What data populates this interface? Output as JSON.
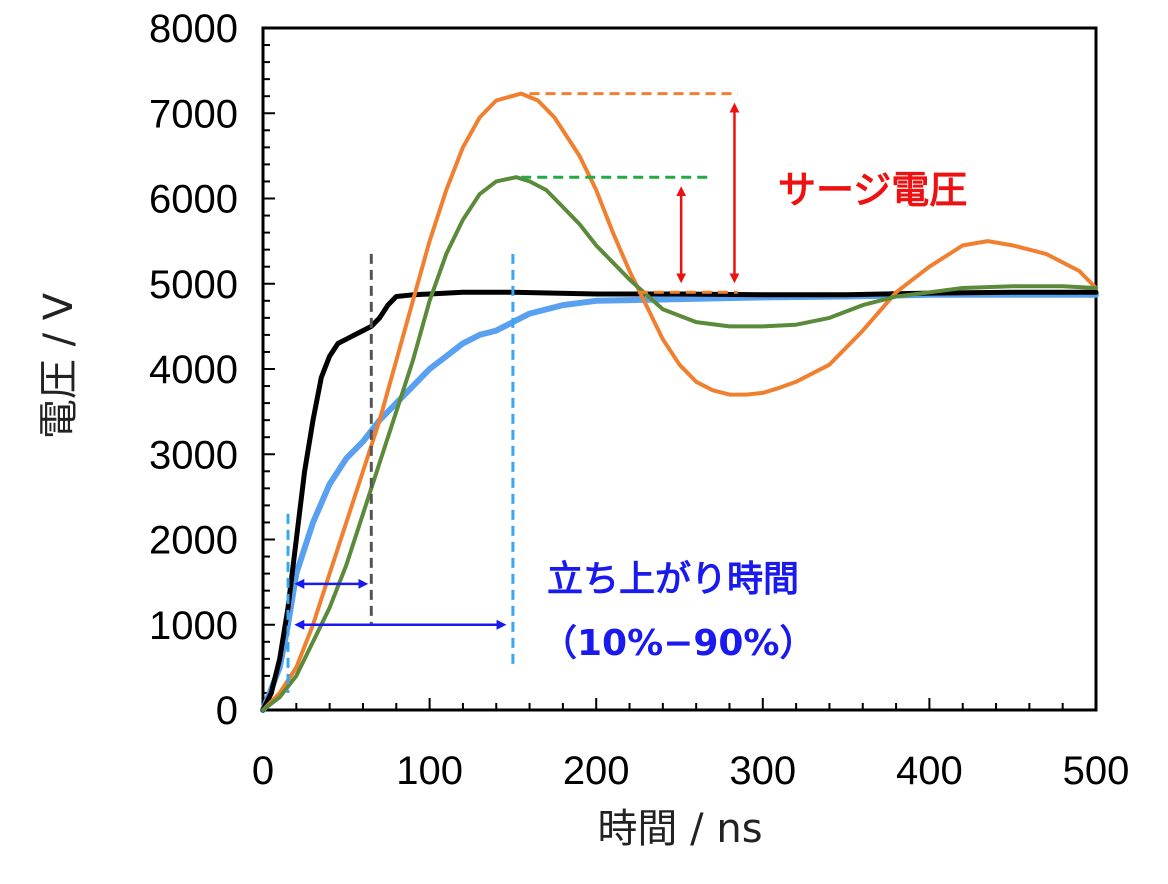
{
  "chart_data": {
    "type": "line",
    "title": "",
    "xlabel": "時間 / ns",
    "ylabel": "電圧 / V",
    "xlim": [
      0,
      500
    ],
    "ylim": [
      0,
      8000
    ],
    "xticks": [
      0,
      100,
      200,
      300,
      400,
      500
    ],
    "yticks": [
      0,
      1000,
      2000,
      3000,
      4000,
      5000,
      6000,
      7000,
      8000
    ],
    "series": [
      {
        "name": "black",
        "color": "#000000",
        "points": [
          [
            0,
            0
          ],
          [
            5,
            200
          ],
          [
            10,
            600
          ],
          [
            15,
            1200
          ],
          [
            20,
            2000
          ],
          [
            25,
            2800
          ],
          [
            30,
            3400
          ],
          [
            35,
            3900
          ],
          [
            40,
            4150
          ],
          [
            45,
            4300
          ],
          [
            50,
            4350
          ],
          [
            55,
            4400
          ],
          [
            60,
            4450
          ],
          [
            65,
            4500
          ],
          [
            70,
            4600
          ],
          [
            75,
            4750
          ],
          [
            80,
            4850
          ],
          [
            90,
            4870
          ],
          [
            100,
            4880
          ],
          [
            120,
            4900
          ],
          [
            150,
            4900
          ],
          [
            200,
            4880
          ],
          [
            250,
            4880
          ],
          [
            300,
            4870
          ],
          [
            350,
            4870
          ],
          [
            400,
            4890
          ],
          [
            450,
            4900
          ],
          [
            500,
            4900
          ]
        ]
      },
      {
        "name": "light-blue",
        "color": "#5aa0f0",
        "points": [
          [
            0,
            0
          ],
          [
            10,
            500
          ],
          [
            15,
            1000
          ],
          [
            20,
            1600
          ],
          [
            30,
            2200
          ],
          [
            40,
            2650
          ],
          [
            50,
            2950
          ],
          [
            60,
            3150
          ],
          [
            70,
            3400
          ],
          [
            80,
            3600
          ],
          [
            90,
            3800
          ],
          [
            100,
            4000
          ],
          [
            110,
            4150
          ],
          [
            120,
            4300
          ],
          [
            130,
            4400
          ],
          [
            140,
            4450
          ],
          [
            150,
            4550
          ],
          [
            160,
            4650
          ],
          [
            180,
            4750
          ],
          [
            200,
            4800
          ],
          [
            250,
            4820
          ],
          [
            300,
            4840
          ],
          [
            350,
            4850
          ],
          [
            400,
            4870
          ],
          [
            450,
            4870
          ],
          [
            500,
            4870
          ]
        ]
      },
      {
        "name": "orange",
        "color": "#f08030",
        "points": [
          [
            0,
            0
          ],
          [
            10,
            200
          ],
          [
            20,
            500
          ],
          [
            30,
            1000
          ],
          [
            40,
            1600
          ],
          [
            50,
            2200
          ],
          [
            60,
            2800
          ],
          [
            70,
            3400
          ],
          [
            80,
            4100
          ],
          [
            90,
            4800
          ],
          [
            100,
            5500
          ],
          [
            110,
            6100
          ],
          [
            120,
            6600
          ],
          [
            130,
            6950
          ],
          [
            140,
            7150
          ],
          [
            155,
            7230
          ],
          [
            165,
            7150
          ],
          [
            175,
            6950
          ],
          [
            190,
            6500
          ],
          [
            200,
            6100
          ],
          [
            210,
            5600
          ],
          [
            220,
            5150
          ],
          [
            230,
            4750
          ],
          [
            240,
            4350
          ],
          [
            250,
            4050
          ],
          [
            260,
            3850
          ],
          [
            270,
            3750
          ],
          [
            280,
            3700
          ],
          [
            290,
            3700
          ],
          [
            300,
            3720
          ],
          [
            310,
            3780
          ],
          [
            320,
            3850
          ],
          [
            340,
            4050
          ],
          [
            360,
            4450
          ],
          [
            380,
            4900
          ],
          [
            400,
            5200
          ],
          [
            420,
            5450
          ],
          [
            435,
            5500
          ],
          [
            450,
            5450
          ],
          [
            470,
            5350
          ],
          [
            490,
            5150
          ],
          [
            500,
            4950
          ]
        ]
      },
      {
        "name": "green",
        "color": "#5a8a3a",
        "points": [
          [
            0,
            0
          ],
          [
            10,
            150
          ],
          [
            20,
            400
          ],
          [
            30,
            800
          ],
          [
            40,
            1200
          ],
          [
            50,
            1700
          ],
          [
            60,
            2300
          ],
          [
            70,
            2900
          ],
          [
            80,
            3500
          ],
          [
            90,
            4100
          ],
          [
            100,
            4800
          ],
          [
            110,
            5350
          ],
          [
            120,
            5750
          ],
          [
            130,
            6050
          ],
          [
            140,
            6200
          ],
          [
            152,
            6250
          ],
          [
            160,
            6200
          ],
          [
            170,
            6100
          ],
          [
            180,
            5900
          ],
          [
            190,
            5700
          ],
          [
            200,
            5450
          ],
          [
            220,
            5050
          ],
          [
            240,
            4700
          ],
          [
            260,
            4550
          ],
          [
            280,
            4500
          ],
          [
            300,
            4500
          ],
          [
            320,
            4520
          ],
          [
            340,
            4600
          ],
          [
            360,
            4750
          ],
          [
            380,
            4850
          ],
          [
            400,
            4900
          ],
          [
            420,
            4950
          ],
          [
            450,
            4970
          ],
          [
            480,
            4970
          ],
          [
            500,
            4950
          ]
        ]
      }
    ],
    "annotations": {
      "surge_label": "サージ電圧",
      "rise_label": "立ち上がり時間",
      "rise_range": "（10%−90%）",
      "surge_orange_peak": 7230,
      "surge_green_peak": 6250,
      "steady_level": 4900,
      "marker_times": [
        15,
        65,
        150
      ],
      "rise_arrow_short": [
        17,
        65
      ],
      "rise_arrow_long": [
        17,
        148
      ]
    }
  }
}
